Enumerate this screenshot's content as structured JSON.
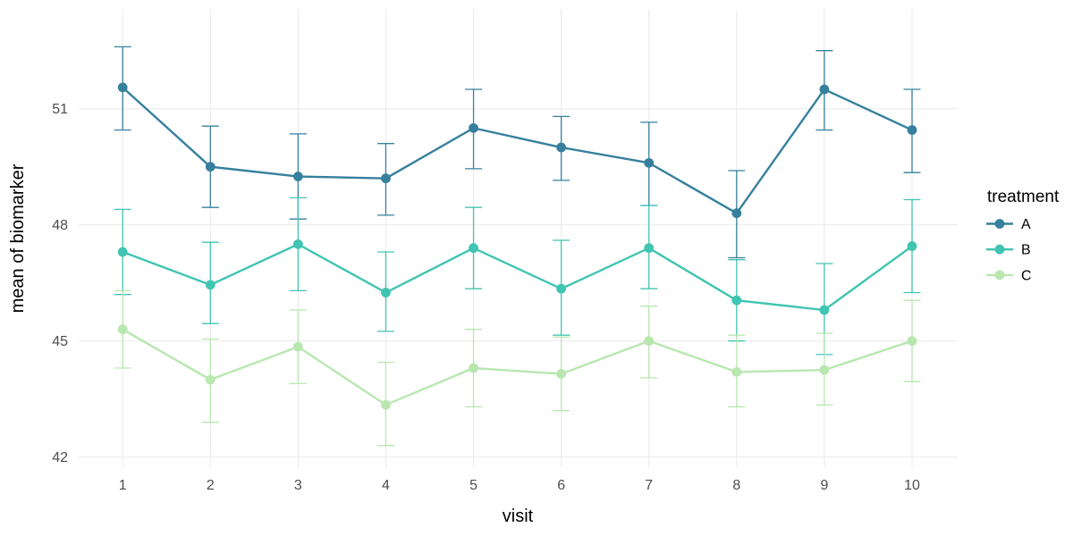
{
  "figure": {
    "background": "#ffffff",
    "grid_color": "#ebebeb",
    "tick_label_color": "#4d4d4d"
  },
  "chart_data": {
    "type": "line",
    "title": "",
    "xlabel": "visit",
    "ylabel": "mean of biomarker",
    "x": [
      1,
      2,
      3,
      4,
      5,
      6,
      7,
      8,
      9,
      10
    ],
    "x_tick_labels": [
      "1",
      "2",
      "3",
      "4",
      "5",
      "6",
      "7",
      "8",
      "9",
      "10"
    ],
    "y_ticks": [
      42,
      45,
      48,
      51
    ],
    "y_tick_labels": [
      "42",
      "45",
      "48",
      "51"
    ],
    "ylim": [
      41.7,
      53.6
    ],
    "xlim": [
      0.5,
      10.5
    ],
    "grid": "major-only",
    "error_bars": true,
    "legend": {
      "title": "treatment",
      "position": "right",
      "entries": [
        "A",
        "B",
        "C"
      ]
    },
    "series": [
      {
        "name": "A",
        "color": "#36809e",
        "means": [
          51.55,
          49.5,
          49.25,
          49.2,
          50.5,
          50.0,
          49.6,
          48.3,
          51.5,
          50.45
        ],
        "err_low": [
          50.45,
          48.45,
          48.15,
          48.25,
          49.45,
          49.15,
          48.5,
          47.15,
          50.45,
          49.35
        ],
        "err_high": [
          52.6,
          50.55,
          50.35,
          50.1,
          51.5,
          50.8,
          50.65,
          49.4,
          52.5,
          51.5
        ]
      },
      {
        "name": "B",
        "color": "#41c4b2",
        "means": [
          47.3,
          46.45,
          47.5,
          46.25,
          47.4,
          46.35,
          47.4,
          46.05,
          45.8,
          47.45
        ],
        "err_low": [
          46.2,
          45.45,
          46.3,
          45.25,
          46.35,
          45.15,
          46.35,
          45.0,
          44.65,
          46.25
        ],
        "err_high": [
          48.4,
          47.55,
          48.7,
          47.3,
          48.45,
          47.6,
          48.5,
          47.1,
          47.0,
          48.65
        ]
      },
      {
        "name": "C",
        "color": "#b8e7b0",
        "means": [
          45.3,
          44.0,
          44.85,
          43.35,
          44.3,
          44.15,
          45.0,
          44.2,
          44.25,
          45.0
        ],
        "err_low": [
          44.3,
          42.9,
          43.9,
          42.3,
          43.3,
          43.2,
          44.05,
          43.3,
          43.35,
          43.95
        ],
        "err_high": [
          46.3,
          45.05,
          45.8,
          44.45,
          45.3,
          45.1,
          45.9,
          45.15,
          45.2,
          46.05
        ]
      }
    ]
  }
}
